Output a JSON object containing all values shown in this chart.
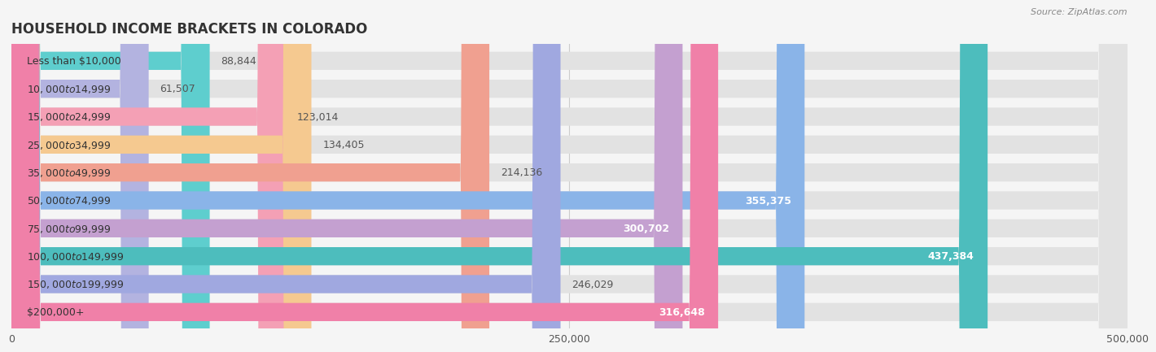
{
  "title": "HOUSEHOLD INCOME BRACKETS IN COLORADO",
  "source": "Source: ZipAtlas.com",
  "categories": [
    "Less than $10,000",
    "$10,000 to $14,999",
    "$15,000 to $24,999",
    "$25,000 to $34,999",
    "$35,000 to $49,999",
    "$50,000 to $74,999",
    "$75,000 to $99,999",
    "$100,000 to $149,999",
    "$150,000 to $199,999",
    "$200,000+"
  ],
  "values": [
    88844,
    61507,
    123014,
    134405,
    214136,
    355375,
    300702,
    437384,
    246029,
    316648
  ],
  "bar_colors": [
    "#5ecece",
    "#b3b3e0",
    "#f4a0b5",
    "#f5c990",
    "#f0a090",
    "#8ab4e8",
    "#c4a0d0",
    "#4dbdbd",
    "#a0a8e0",
    "#f080a8"
  ],
  "value_inside": [
    false,
    false,
    false,
    false,
    false,
    true,
    true,
    true,
    false,
    true
  ],
  "xlim": [
    0,
    500000
  ],
  "xticks": [
    0,
    250000,
    500000
  ],
  "xtick_labels": [
    "0",
    "250,000",
    "500,000"
  ],
  "bg_color": "#f5f5f5",
  "title_fontsize": 12,
  "label_fontsize": 9,
  "value_fontsize": 9
}
